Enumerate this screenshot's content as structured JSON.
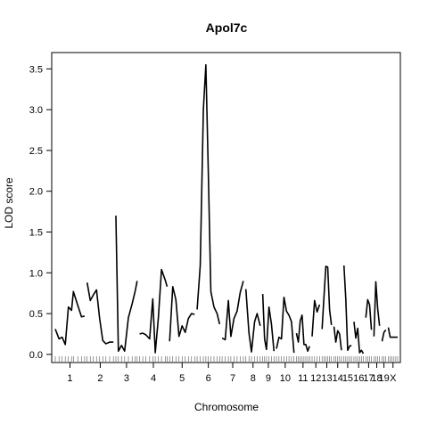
{
  "chart_data": {
    "type": "line",
    "title": "Apol7c",
    "xlabel": "Chromosome",
    "ylabel": "LOD score",
    "ylim": [
      -0.1,
      3.7
    ],
    "yticks": [
      "0.0",
      "0.5",
      "1.0",
      "1.5",
      "2.0",
      "2.5",
      "3.0",
      "3.5"
    ],
    "grid": false,
    "legend": "none",
    "line_color": "#000000",
    "chromosomes": [
      {
        "label": "1",
        "x": [
          0,
          6,
          11,
          16,
          21,
          26,
          29,
          36,
          42,
          47
        ],
        "lod": [
          0.31,
          0.19,
          0.21,
          0.12,
          0.58,
          0.54,
          0.77,
          0.6,
          0.46,
          0.47
        ]
      },
      {
        "label": "2",
        "x": [
          0,
          5,
          10,
          15,
          20,
          25,
          30,
          36,
          42
        ],
        "lod": [
          0.88,
          0.66,
          0.73,
          0.79,
          0.44,
          0.17,
          0.13,
          0.15,
          0.15
        ]
      },
      {
        "label": "3",
        "x": [
          0,
          4,
          9,
          14,
          20,
          26,
          31,
          34
        ],
        "lod": [
          1.7,
          0.04,
          0.11,
          0.04,
          0.45,
          0.62,
          0.78,
          0.9
        ]
      },
      {
        "label": "4",
        "x": [
          0,
          5,
          10,
          16,
          21,
          25,
          30,
          35,
          41,
          44
        ],
        "lod": [
          0.25,
          0.26,
          0.24,
          0.19,
          0.68,
          0.02,
          0.45,
          1.04,
          0.91,
          0.83
        ]
      },
      {
        "label": "5",
        "x": [
          0,
          5,
          10,
          15,
          20,
          25,
          30,
          35,
          40
        ],
        "lod": [
          0.16,
          0.83,
          0.67,
          0.22,
          0.35,
          0.27,
          0.44,
          0.5,
          0.49
        ]
      },
      {
        "label": "6",
        "x": [
          0,
          5,
          10,
          14,
          18,
          22,
          27,
          32,
          36
        ],
        "lod": [
          0.55,
          1.09,
          3.0,
          3.55,
          2.2,
          0.77,
          0.58,
          0.5,
          0.37
        ]
      },
      {
        "label": "7",
        "x": [
          0,
          5,
          10,
          14,
          19,
          24,
          29,
          34
        ],
        "lod": [
          0.2,
          0.18,
          0.66,
          0.22,
          0.44,
          0.53,
          0.76,
          0.9
        ]
      },
      {
        "label": "8",
        "x": [
          0,
          5,
          9,
          14,
          18,
          23
        ],
        "lod": [
          0.8,
          0.26,
          0.03,
          0.4,
          0.5,
          0.35
        ]
      },
      {
        "label": "9",
        "x": [
          0,
          3,
          6,
          10,
          14,
          18
        ],
        "lod": [
          0.74,
          0.19,
          0.06,
          0.58,
          0.37,
          0.04
        ]
      },
      {
        "label": "10",
        "x": [
          0,
          4,
          8,
          12,
          16,
          20,
          24,
          28
        ],
        "lod": [
          0.07,
          0.21,
          0.19,
          0.7,
          0.53,
          0.48,
          0.4,
          0.02
        ]
      },
      {
        "label": "11",
        "x": [
          0,
          3,
          6,
          9,
          12,
          15,
          18,
          21
        ],
        "lod": [
          0.26,
          0.15,
          0.41,
          0.48,
          0.12,
          0.12,
          0.04,
          0.1
        ]
      },
      {
        "label": "12",
        "x": [
          0,
          4,
          8,
          12
        ],
        "lod": [
          0.22,
          0.66,
          0.52,
          0.61
        ]
      },
      {
        "label": "13",
        "x": [
          0,
          3,
          6,
          9,
          12,
          15
        ],
        "lod": [
          0.31,
          0.7,
          1.08,
          1.07,
          0.55,
          0.36
        ]
      },
      {
        "label": "14",
        "x": [
          0,
          3,
          6,
          9,
          12
        ],
        "lod": [
          0.34,
          0.15,
          0.29,
          0.25,
          0.05
        ]
      },
      {
        "label": "15",
        "x": [
          0,
          3,
          6,
          9,
          12
        ],
        "lod": [
          1.09,
          0.67,
          0.05,
          0.1,
          0.11
        ]
      },
      {
        "label": "16",
        "x": [
          0,
          3,
          6,
          9,
          12,
          15
        ],
        "lod": [
          0.4,
          0.2,
          0.32,
          0.02,
          0.05,
          0.01
        ]
      },
      {
        "label": "17",
        "x": [
          0,
          3,
          6,
          9
        ],
        "lod": [
          0.45,
          0.67,
          0.61,
          0.3
        ]
      },
      {
        "label": "18",
        "x": [
          0,
          3,
          6,
          9
        ],
        "lod": [
          0.22,
          0.89,
          0.56,
          0.35
        ]
      },
      {
        "label": "19",
        "x": [
          0,
          3,
          6
        ],
        "lod": [
          0.16,
          0.27,
          0.3
        ]
      },
      {
        "label": "X",
        "x": [
          0,
          3,
          6,
          9,
          12,
          15
        ],
        "lod": [
          0.33,
          0.21,
          0.21,
          0.21,
          0.21,
          0.21
        ]
      }
    ]
  }
}
